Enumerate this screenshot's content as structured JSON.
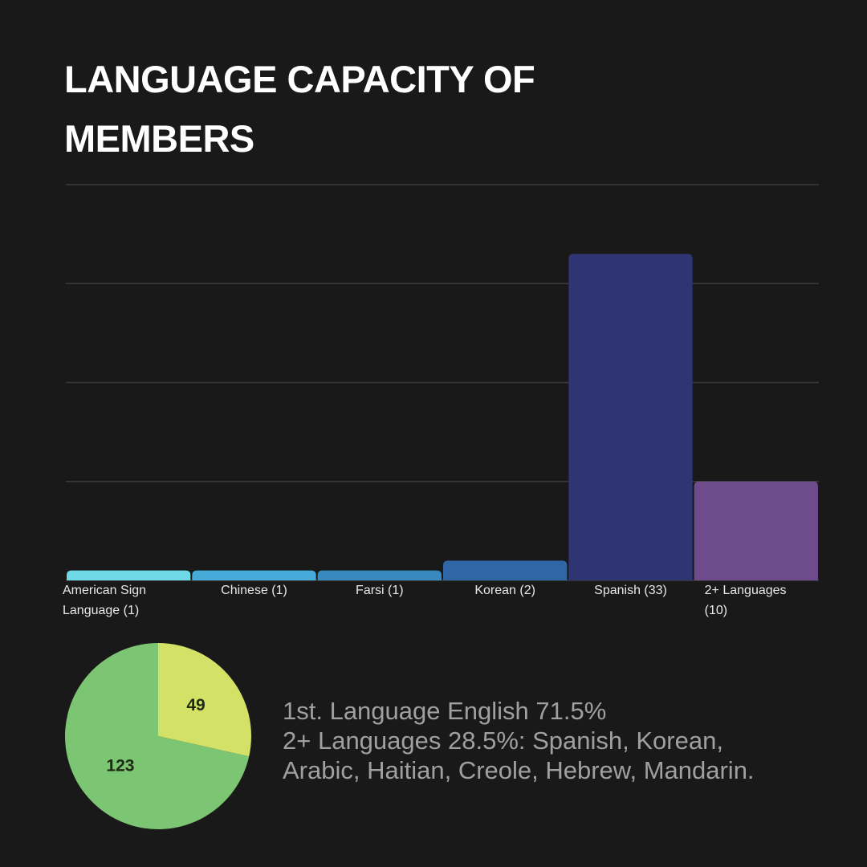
{
  "chart_data": [
    {
      "type": "bar",
      "title": "LANGUAGE CAPACITY OF MEMBERS",
      "categories": [
        "American Sign Language (1)",
        "Chinese  (1)",
        "Farsi  (1)",
        "Korean    (2)",
        "Spanish (33)",
        "2+ Languages (10)"
      ],
      "values": [
        1,
        1,
        1,
        2,
        33,
        10
      ],
      "colors": [
        "#6fd8e6",
        "#46abd8",
        "#3889be",
        "#2e66a6",
        "#2f3472",
        "#6e4b8b"
      ],
      "ylim": [
        0,
        40
      ],
      "yticks": [
        0,
        10,
        20,
        30,
        40
      ],
      "grid": true
    },
    {
      "type": "pie",
      "values": [
        49,
        123
      ],
      "colors": [
        "#d3e166",
        "#7cc572"
      ],
      "annotation": [
        "1st. Language English 71.5%",
        "2+ Languages 28.5%: Spanish, Korean,",
        "Arabic, Haitian, Creole, Hebrew, Mandarin."
      ]
    }
  ]
}
